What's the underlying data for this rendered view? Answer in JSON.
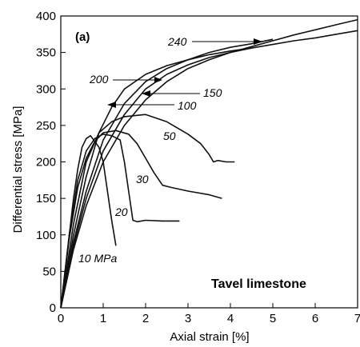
{
  "chart_data": {
    "type": "line",
    "panel_label": "(a)",
    "annotation": "Tavel limestone",
    "xlabel": "Axial strain [%]",
    "ylabel": "Differential stress [MPa]",
    "xlim": [
      0,
      7
    ],
    "ylim": [
      0,
      400
    ],
    "xticks": [
      0,
      1,
      2,
      3,
      4,
      5,
      6,
      7
    ],
    "yticks": [
      0,
      50,
      100,
      150,
      200,
      250,
      300,
      350,
      400
    ],
    "grid": false,
    "legend": "none",
    "series": [
      {
        "name": "10 MPa",
        "x": [
          0,
          0.1,
          0.2,
          0.3,
          0.4,
          0.5,
          0.6,
          0.7,
          0.9,
          1.0,
          1.1,
          1.2,
          1.3
        ],
        "y": [
          0,
          50,
          100,
          150,
          190,
          220,
          232,
          236,
          220,
          200,
          160,
          120,
          85
        ]
      },
      {
        "name": "20",
        "x": [
          0,
          0.2,
          0.4,
          0.6,
          0.8,
          1.0,
          1.2,
          1.4,
          1.5,
          1.6,
          1.7,
          1.8,
          2.0,
          2.4,
          2.8
        ],
        "y": [
          0,
          100,
          175,
          215,
          232,
          238,
          236,
          230,
          200,
          160,
          120,
          118,
          120,
          119,
          119
        ]
      },
      {
        "name": "30",
        "x": [
          0,
          0.2,
          0.4,
          0.6,
          0.8,
          1.0,
          1.3,
          1.6,
          1.8,
          2.0,
          2.2,
          2.4,
          2.6,
          3.0,
          3.5,
          3.8
        ],
        "y": [
          0,
          95,
          165,
          205,
          228,
          240,
          243,
          238,
          225,
          205,
          185,
          168,
          165,
          160,
          155,
          150
        ]
      },
      {
        "name": "50",
        "x": [
          0,
          0.3,
          0.6,
          0.9,
          1.2,
          1.5,
          2.0,
          2.5,
          3.0,
          3.3,
          3.5,
          3.6,
          3.7,
          3.9,
          4.1
        ],
        "y": [
          0,
          115,
          200,
          240,
          255,
          262,
          265,
          255,
          238,
          225,
          210,
          200,
          202,
          200,
          200
        ]
      },
      {
        "name": "100",
        "x": [
          0,
          0.3,
          0.6,
          0.9,
          1.2,
          1.5,
          2.0,
          2.5,
          3.0,
          3.5,
          4.0,
          4.5
        ],
        "y": [
          0,
          100,
          180,
          240,
          275,
          300,
          320,
          332,
          340,
          347,
          352,
          356
        ]
      },
      {
        "name": "150",
        "x": [
          0,
          0.3,
          0.6,
          1.0,
          1.5,
          2.0,
          2.5,
          3.0,
          3.5,
          4.0,
          4.5,
          5.0
        ],
        "y": [
          0,
          90,
          160,
          230,
          280,
          310,
          328,
          340,
          350,
          357,
          362,
          368
        ]
      },
      {
        "name": "200",
        "x": [
          0,
          0.3,
          0.6,
          1.0,
          1.5,
          2.0,
          2.5,
          3.0,
          3.5,
          4.0,
          4.5,
          5.0,
          5.5,
          6.0,
          6.5,
          7.0
        ],
        "y": [
          0,
          85,
          150,
          215,
          265,
          300,
          320,
          333,
          343,
          350,
          356,
          361,
          366,
          370,
          375,
          380
        ]
      },
      {
        "name": "240",
        "x": [
          0,
          0.3,
          0.6,
          1.0,
          1.5,
          2.0,
          2.5,
          3.0,
          3.5,
          4.0,
          4.5,
          5.0,
          5.5,
          6.0,
          6.5,
          7.0
        ],
        "y": [
          0,
          80,
          140,
          200,
          250,
          285,
          310,
          328,
          340,
          350,
          358,
          366,
          374,
          381,
          388,
          395
        ]
      }
    ]
  }
}
